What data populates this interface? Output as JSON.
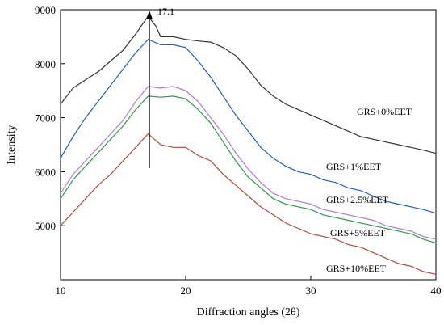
{
  "chart_data": {
    "type": "line",
    "title": "",
    "xlabel": "Diffraction angles (2θ)",
    "ylabel": "Intensity",
    "xlim": [
      10,
      40
    ],
    "ylim": [
      4000,
      9000
    ],
    "x_ticks": [
      "10",
      "20",
      "30",
      "40"
    ],
    "y_ticks": [
      "5000",
      "6000",
      "7000",
      "8000",
      "9000"
    ],
    "grid": false,
    "legend": "labels next to curves",
    "annotation": {
      "text": "17.1",
      "x": 17.1
    },
    "series": [
      {
        "name": "GRS+0%EET",
        "color": "#333333",
        "label_at": [
          22.0,
          8000
        ],
        "points": [
          [
            10,
            7250
          ],
          [
            11,
            7550
          ],
          [
            12,
            7700
          ],
          [
            13,
            7850
          ],
          [
            14,
            8050
          ],
          [
            15,
            8250
          ],
          [
            16,
            8550
          ],
          [
            17,
            8880
          ],
          [
            17.6,
            8700
          ],
          [
            18,
            8500
          ],
          [
            19,
            8500
          ],
          [
            20,
            8450
          ],
          [
            21,
            8420
          ],
          [
            22,
            8400
          ],
          [
            23,
            8300
          ],
          [
            24,
            8150
          ],
          [
            25,
            7900
          ],
          [
            26,
            7600
          ],
          [
            27,
            7400
          ],
          [
            28,
            7250
          ],
          [
            29,
            7150
          ],
          [
            30,
            7050
          ],
          [
            31,
            6950
          ],
          [
            32,
            6850
          ],
          [
            33,
            6750
          ],
          [
            34,
            6650
          ],
          [
            35,
            6600
          ],
          [
            36,
            6550
          ],
          [
            37,
            6500
          ],
          [
            38,
            6450
          ],
          [
            39,
            6400
          ],
          [
            40,
            6340
          ]
        ]
      },
      {
        "name": "GRS+1%EET",
        "color": "#1f5fbf",
        "label_at": [
          22.0,
          6100
        ],
        "points": [
          [
            10,
            6250
          ],
          [
            11,
            6650
          ],
          [
            12,
            7000
          ],
          [
            13,
            7300
          ],
          [
            14,
            7600
          ],
          [
            15,
            7900
          ],
          [
            16,
            8200
          ],
          [
            17,
            8450
          ],
          [
            18,
            8350
          ],
          [
            19,
            8350
          ],
          [
            20,
            8300
          ],
          [
            21,
            8050
          ],
          [
            22,
            7750
          ],
          [
            23,
            7400
          ],
          [
            24,
            7050
          ],
          [
            25,
            6750
          ],
          [
            26,
            6450
          ],
          [
            27,
            6250
          ],
          [
            28,
            6100
          ],
          [
            29,
            6000
          ],
          [
            30,
            5950
          ],
          [
            31,
            5850
          ],
          [
            32,
            5800
          ],
          [
            33,
            5700
          ],
          [
            34,
            5650
          ],
          [
            35,
            5550
          ],
          [
            36,
            5450
          ],
          [
            37,
            5400
          ],
          [
            38,
            5350
          ],
          [
            39,
            5300
          ],
          [
            40,
            5230
          ]
        ]
      },
      {
        "name": "GRS+2.5%EET",
        "color": "#b07ad9",
        "label_at": [
          22.0,
          5400
        ],
        "points": [
          [
            10,
            5600
          ],
          [
            11,
            5950
          ],
          [
            12,
            6200
          ],
          [
            13,
            6450
          ],
          [
            14,
            6700
          ],
          [
            15,
            6950
          ],
          [
            16,
            7300
          ],
          [
            17,
            7580
          ],
          [
            18,
            7550
          ],
          [
            19,
            7580
          ],
          [
            20,
            7500
          ],
          [
            21,
            7300
          ],
          [
            22,
            7000
          ],
          [
            23,
            6700
          ],
          [
            24,
            6350
          ],
          [
            25,
            6050
          ],
          [
            26,
            5800
          ],
          [
            27,
            5600
          ],
          [
            28,
            5500
          ],
          [
            29,
            5450
          ],
          [
            30,
            5400
          ],
          [
            31,
            5300
          ],
          [
            32,
            5250
          ],
          [
            33,
            5200
          ],
          [
            34,
            5150
          ],
          [
            35,
            5100
          ],
          [
            36,
            5000
          ],
          [
            37,
            4950
          ],
          [
            38,
            4900
          ],
          [
            39,
            4800
          ],
          [
            40,
            4750
          ]
        ]
      },
      {
        "name": "GRS+5%EET",
        "color": "#2e9a4a",
        "label_at": [
          22.0,
          4950
        ],
        "points": [
          [
            10,
            5500
          ],
          [
            11,
            5850
          ],
          [
            12,
            6100
          ],
          [
            13,
            6350
          ],
          [
            14,
            6600
          ],
          [
            15,
            6850
          ],
          [
            16,
            7150
          ],
          [
            17,
            7400
          ],
          [
            18,
            7380
          ],
          [
            19,
            7400
          ],
          [
            20,
            7350
          ],
          [
            21,
            7150
          ],
          [
            22,
            6900
          ],
          [
            23,
            6550
          ],
          [
            24,
            6200
          ],
          [
            25,
            5900
          ],
          [
            26,
            5700
          ],
          [
            27,
            5500
          ],
          [
            28,
            5400
          ],
          [
            29,
            5350
          ],
          [
            30,
            5300
          ],
          [
            31,
            5200
          ],
          [
            32,
            5150
          ],
          [
            33,
            5100
          ],
          [
            34,
            5050
          ],
          [
            35,
            5000
          ],
          [
            36,
            4950
          ],
          [
            37,
            4900
          ],
          [
            38,
            4850
          ],
          [
            39,
            4750
          ],
          [
            40,
            4680
          ]
        ]
      },
      {
        "name": "GRS+10%EET",
        "color": "#b24a3a",
        "label_at": [
          22.0,
          4300
        ],
        "points": [
          [
            10,
            5000
          ],
          [
            11,
            5250
          ],
          [
            12,
            5500
          ],
          [
            13,
            5750
          ],
          [
            14,
            5950
          ],
          [
            15,
            6200
          ],
          [
            16,
            6450
          ],
          [
            17,
            6700
          ],
          [
            18,
            6500
          ],
          [
            19,
            6450
          ],
          [
            20,
            6450
          ],
          [
            21,
            6300
          ],
          [
            22,
            6200
          ],
          [
            23,
            5950
          ],
          [
            24,
            5750
          ],
          [
            25,
            5550
          ],
          [
            26,
            5350
          ],
          [
            27,
            5200
          ],
          [
            28,
            5050
          ],
          [
            29,
            4950
          ],
          [
            30,
            4850
          ],
          [
            31,
            4800
          ],
          [
            32,
            4750
          ],
          [
            33,
            4650
          ],
          [
            34,
            4600
          ],
          [
            35,
            4500
          ],
          [
            36,
            4400
          ],
          [
            37,
            4300
          ],
          [
            38,
            4250
          ],
          [
            39,
            4150
          ],
          [
            40,
            4100
          ]
        ]
      }
    ]
  }
}
